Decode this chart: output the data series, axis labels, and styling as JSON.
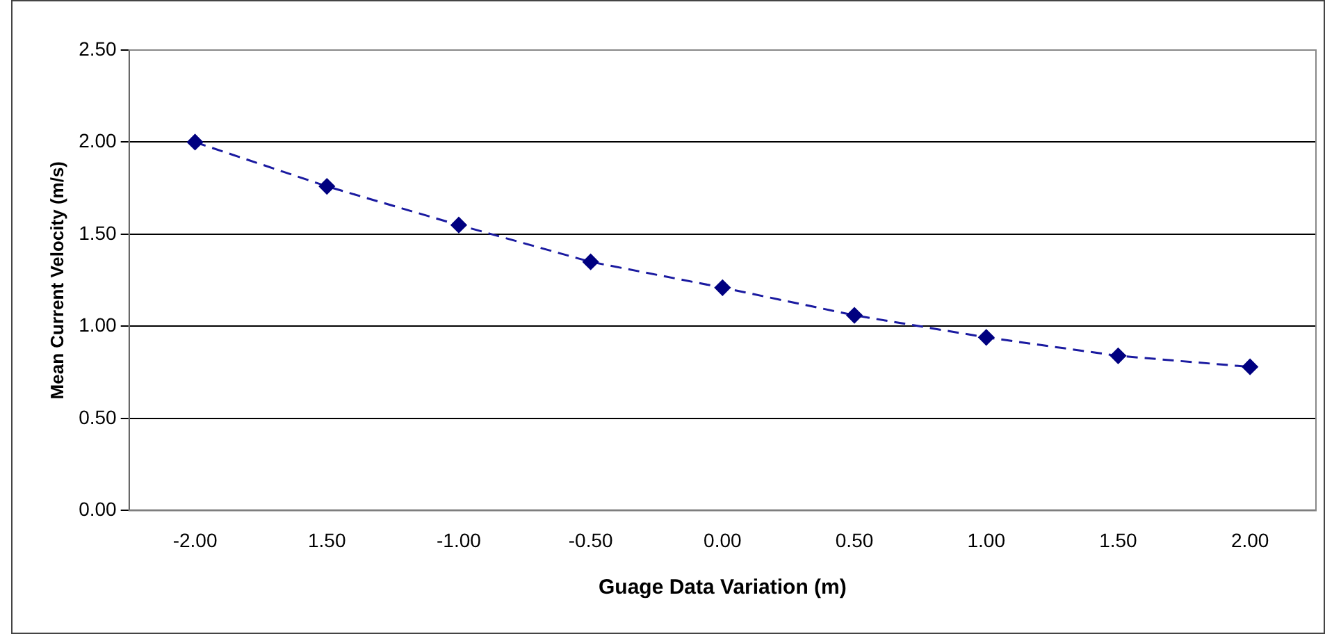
{
  "chart_data": {
    "type": "line",
    "xlabel": "Guage Data Variation (m)",
    "ylabel": "Mean Current Velocity (m/s)",
    "categories": [
      "-2.00",
      "1.50",
      "-1.00",
      "-0.50",
      "0.00",
      "0.50",
      "1.00",
      "1.50",
      "2.00"
    ],
    "series": [
      {
        "color": "#1a1aa0",
        "values": [
          2.0,
          1.76,
          1.55,
          1.35,
          1.21,
          1.06,
          0.94,
          0.84,
          0.78
        ]
      }
    ],
    "ylim": [
      0,
      2.5
    ],
    "yticks": [
      {
        "value": 0,
        "label": "0.00"
      },
      {
        "value": 0.5,
        "label": "0.50"
      },
      {
        "value": 1,
        "label": "1.00"
      },
      {
        "value": 1.5,
        "label": "1.50"
      },
      {
        "value": 2,
        "label": "2.00"
      },
      {
        "value": 2.5,
        "label": "2.50"
      }
    ],
    "grid": "y",
    "legend": false,
    "marker": "diamond",
    "line_style": "dashed"
  }
}
